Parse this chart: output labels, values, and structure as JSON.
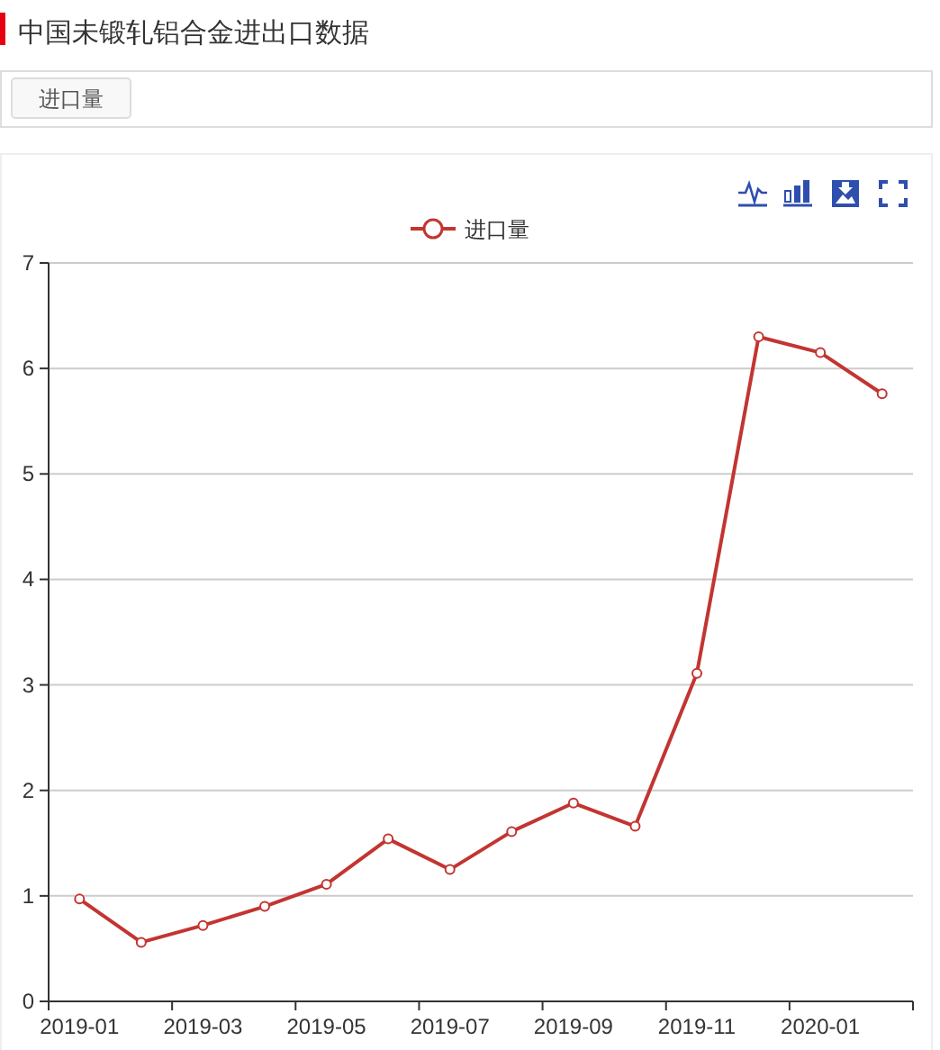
{
  "chart_data": {
    "type": "line",
    "title": "中国未锻轧铝合金进出口数据",
    "subtitle": "进口量",
    "categories": [
      "2019-01",
      null,
      "2019-03",
      null,
      "2019-05",
      null,
      "2019-07",
      null,
      "2019-09",
      null,
      "2019-11",
      null,
      "2020-01",
      null
    ],
    "series": [
      {
        "name": "进口量",
        "color": "#c23531",
        "values": [
          0.97,
          0.56,
          0.72,
          0.9,
          1.11,
          1.54,
          1.25,
          1.61,
          1.88,
          1.66,
          3.11,
          6.3,
          6.15,
          5.76
        ]
      }
    ],
    "ylim": [
      0,
      7
    ],
    "yticks": [
      0,
      1,
      2,
      3,
      4,
      5,
      6,
      7
    ],
    "grid": "y",
    "legend": "top",
    "marker": "circle",
    "line_style": "solid"
  }
}
